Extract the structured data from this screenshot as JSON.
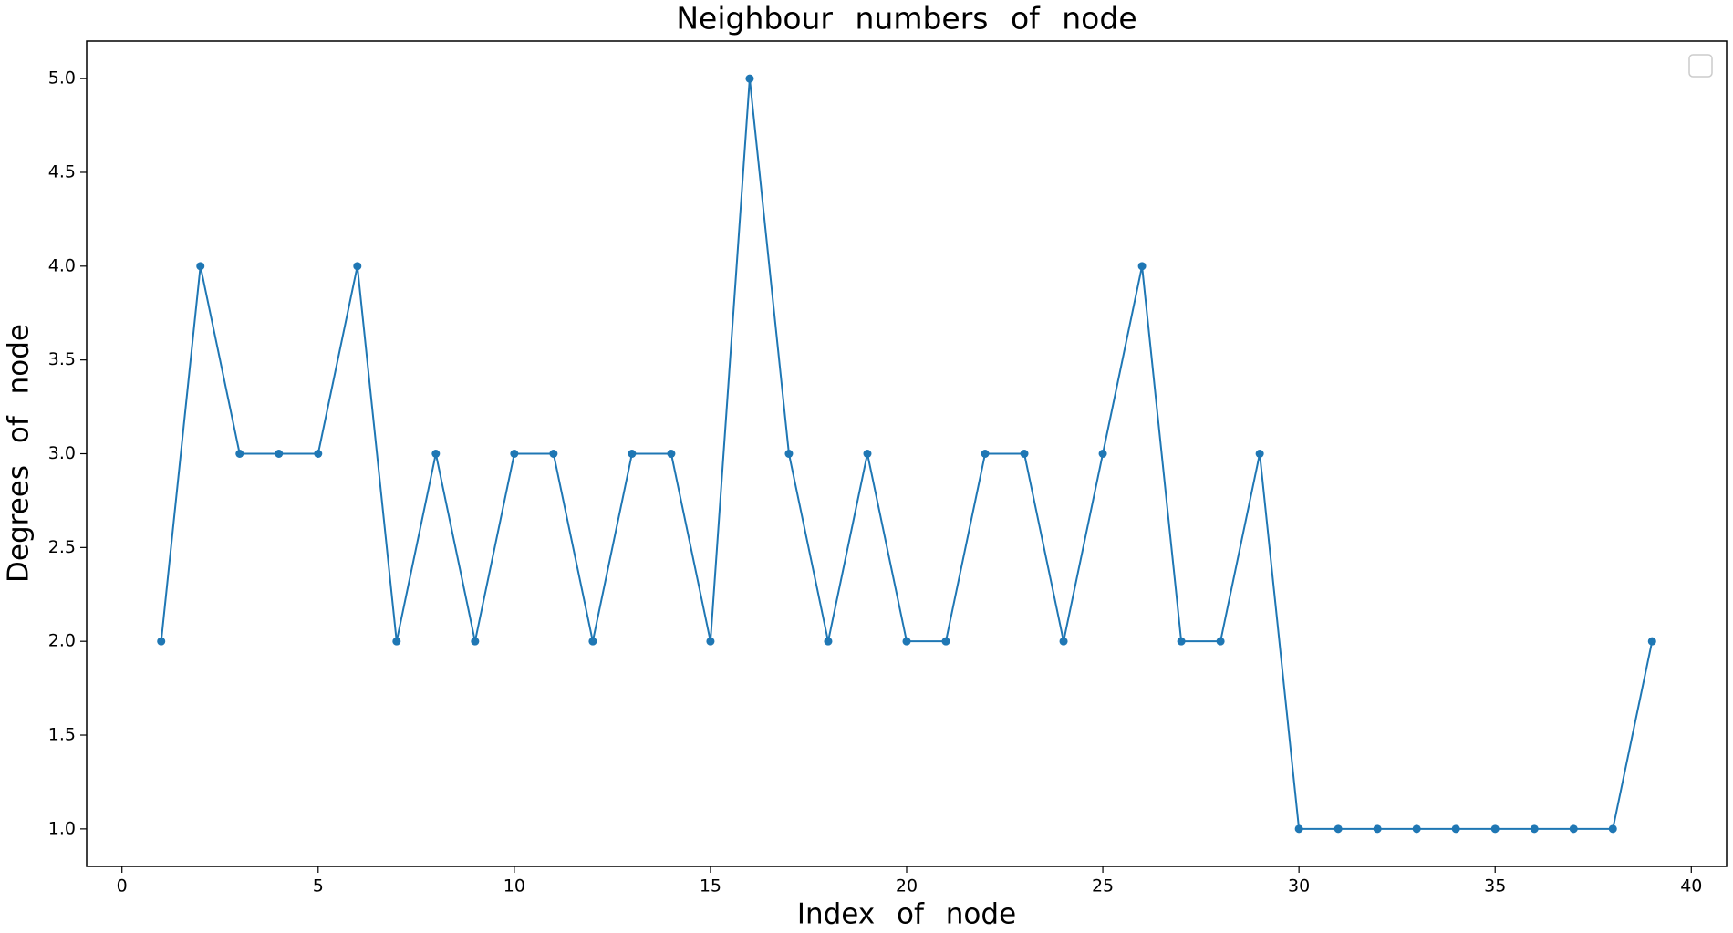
{
  "chart_data": {
    "type": "line",
    "title": "Neighbour numbers of node",
    "x_label": "Index of node",
    "y_label": "Degrees of node",
    "x": [
      1,
      2,
      3,
      4,
      5,
      6,
      7,
      8,
      9,
      10,
      11,
      12,
      13,
      14,
      15,
      16,
      17,
      18,
      19,
      20,
      21,
      22,
      23,
      24,
      25,
      26,
      27,
      28,
      29,
      30,
      31,
      32,
      33,
      34,
      35,
      36,
      37,
      38,
      39
    ],
    "series": [
      {
        "color": "#1f77b4",
        "values": [
          2,
          4,
          3,
          3,
          3,
          4,
          2,
          3,
          2,
          3,
          3,
          2,
          3,
          3,
          2,
          5,
          3,
          2,
          3,
          2,
          2,
          3,
          3,
          2,
          3,
          4,
          2,
          2,
          3,
          1,
          1,
          1,
          1,
          1,
          1,
          1,
          1,
          1,
          2
        ]
      }
    ],
    "xlim": [
      -0.9,
      40.9
    ],
    "xticks": [
      0,
      5,
      10,
      15,
      20,
      25,
      30,
      35,
      40
    ],
    "ylim": [
      0.8,
      5.2
    ],
    "yticks": [
      {
        "value": 1,
        "label": "1.0"
      },
      {
        "value": 1.5,
        "label": "1.5"
      },
      {
        "value": 2,
        "label": "2.0"
      },
      {
        "value": 2.5,
        "label": "2.5"
      },
      {
        "value": 3,
        "label": "3.0"
      },
      {
        "value": 3.5,
        "label": "3.5"
      },
      {
        "value": 4,
        "label": "4.0"
      },
      {
        "value": 4.5,
        "label": "4.5"
      },
      {
        "value": 5,
        "label": "5.0"
      }
    ],
    "grid": false
  }
}
